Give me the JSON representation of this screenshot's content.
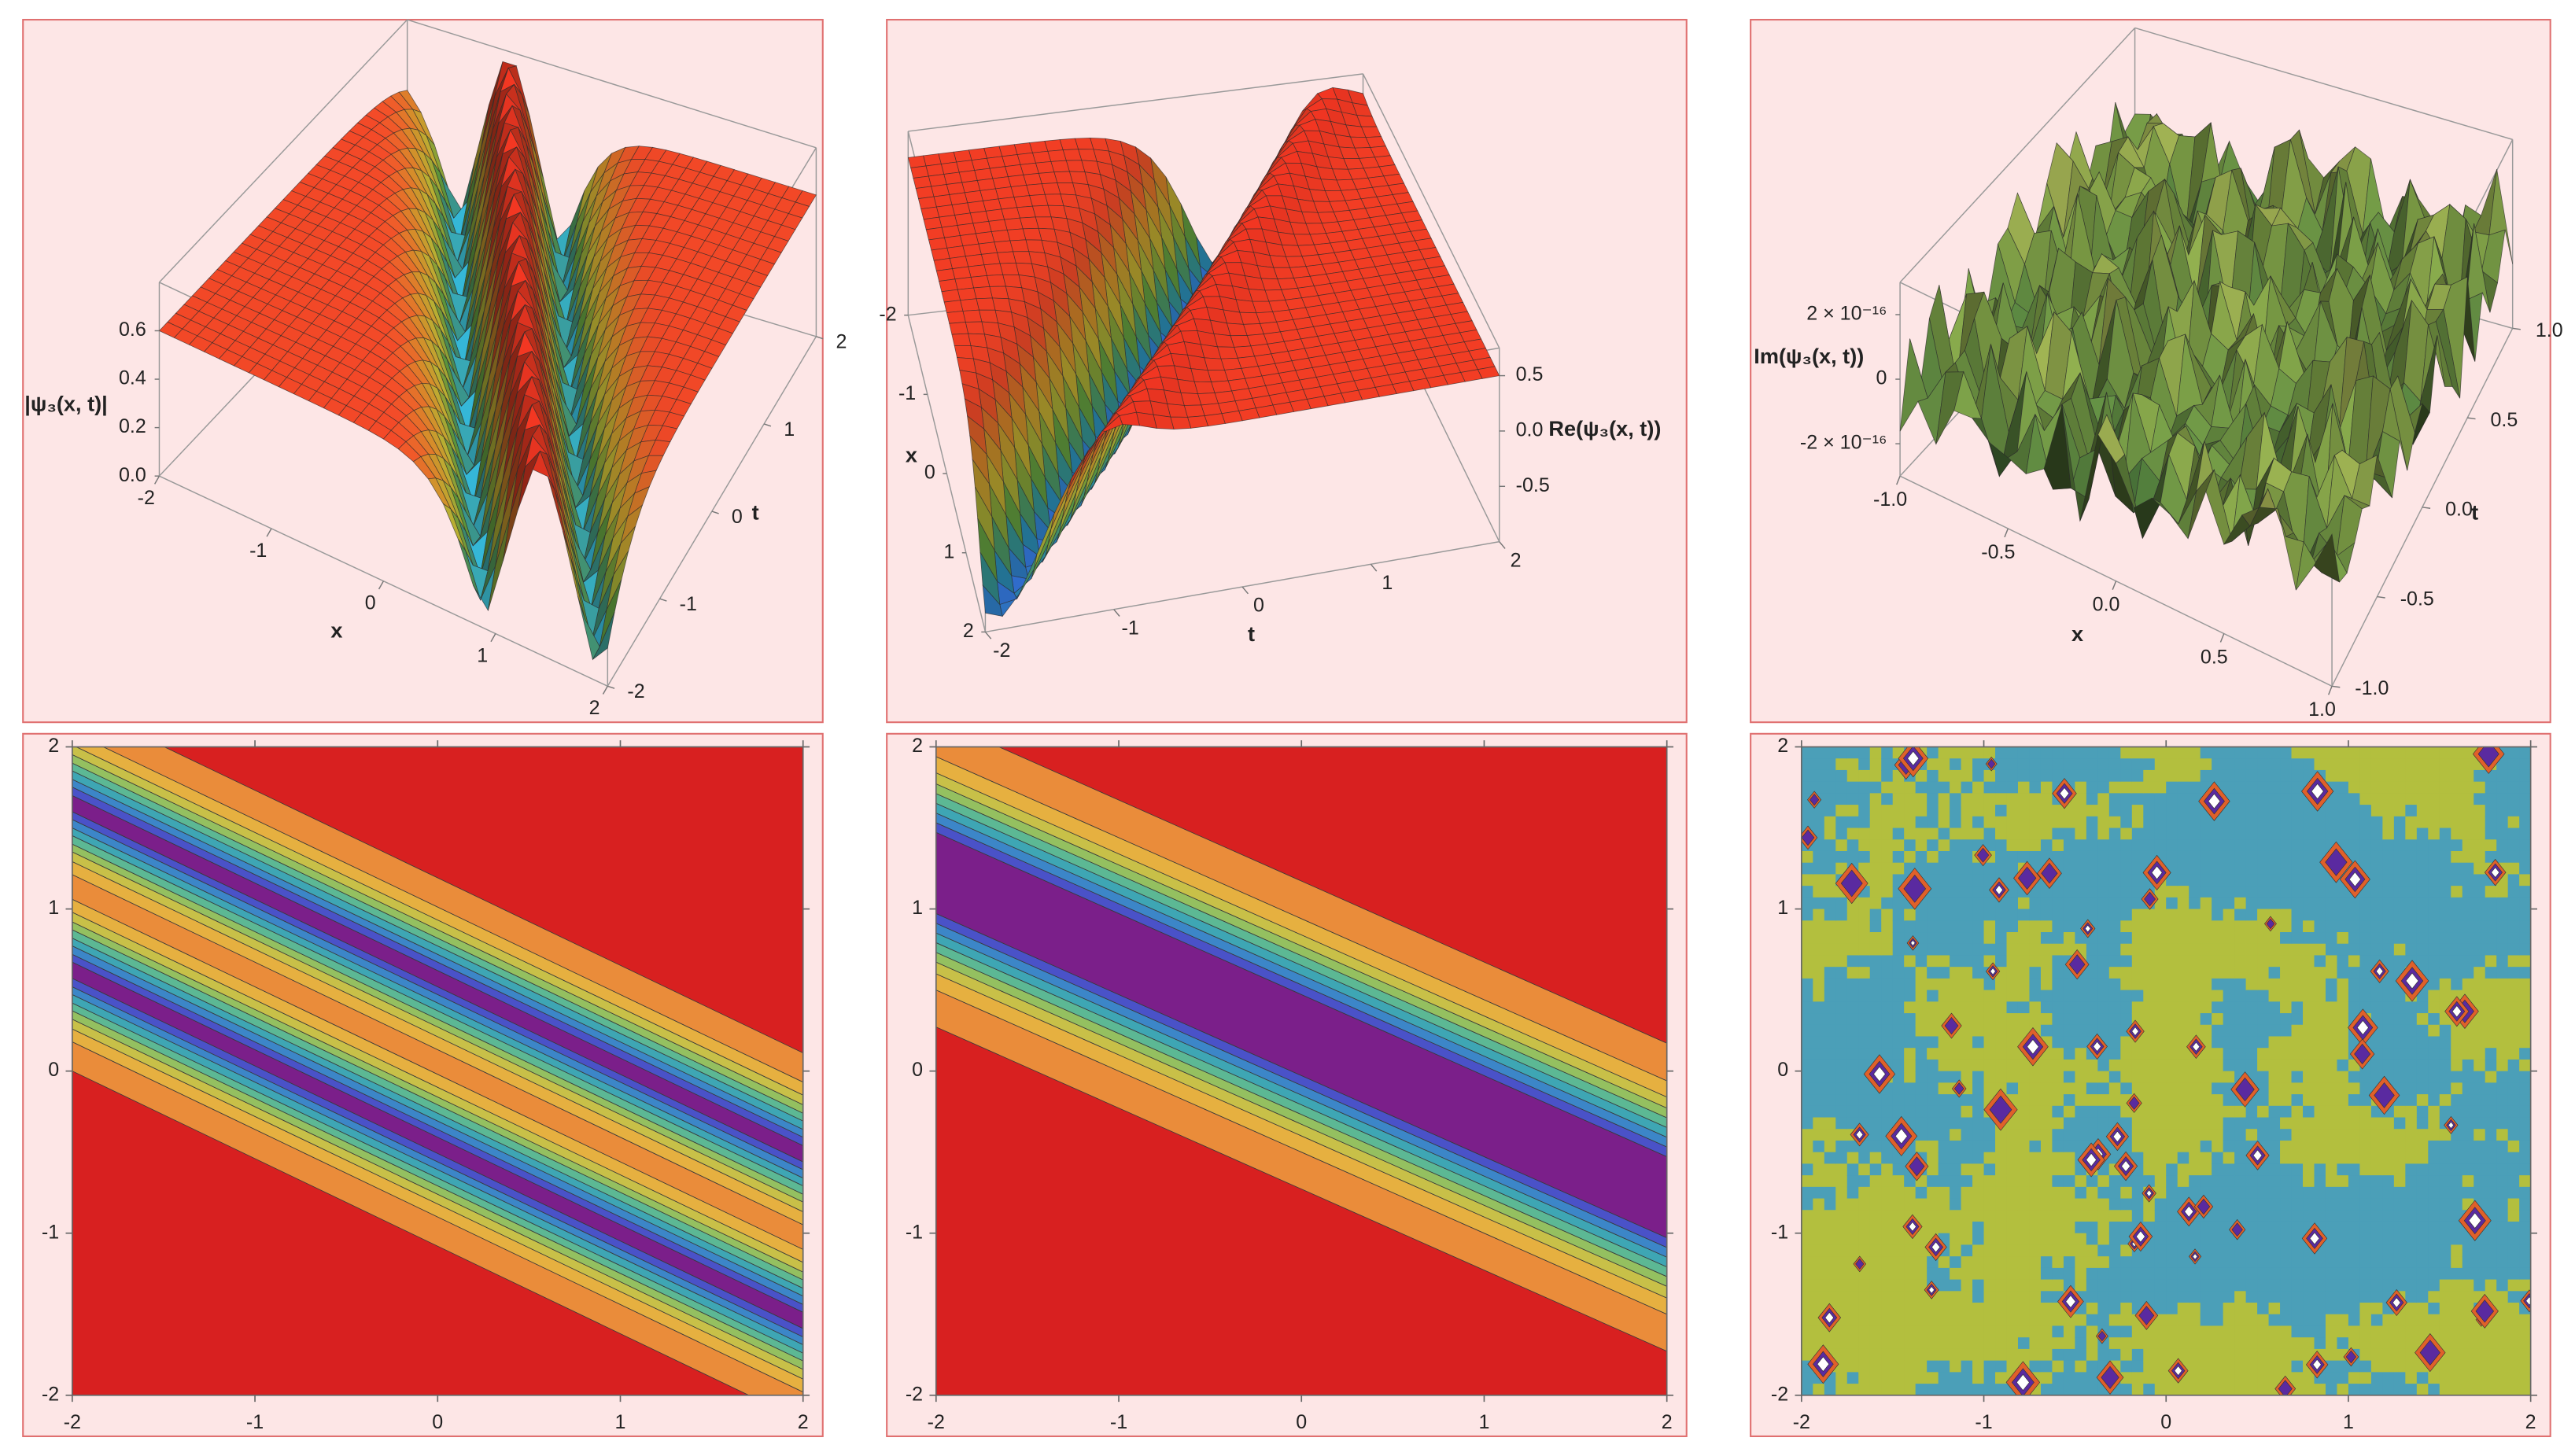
{
  "chart_data": [
    {
      "type": "surface3d",
      "z_label": "|ψ₃(x, t)|",
      "x_label": "x",
      "t_label": "t",
      "xlim": [
        -2,
        2
      ],
      "tlim": [
        -2,
        2
      ],
      "zlim": [
        0,
        0.8
      ],
      "xticks": [
        -2,
        -1,
        0,
        1,
        2
      ],
      "tticks": [
        -2,
        -1,
        0,
        1,
        2
      ],
      "zticks": [
        {
          "value": 0,
          "label": "0.0"
        },
        0.2,
        0.4,
        0.6
      ]
    },
    {
      "type": "surface3d",
      "z_label": "Re(ψ₃(x, t))",
      "x_label": "x",
      "t_label": "t",
      "xlim": [
        -2,
        2
      ],
      "tlim": [
        -2,
        2
      ],
      "zlim": [
        -1,
        0.75
      ],
      "xticks": [
        -2,
        -1,
        0,
        1,
        2
      ],
      "tticks": [
        -2,
        -1,
        0,
        1,
        2
      ],
      "zticks": [
        -0.5,
        {
          "value": 0,
          "label": "0.0"
        },
        0.5
      ]
    },
    {
      "type": "surface3d",
      "z_label": "Im(ψ₃(x, t))",
      "x_label": "x",
      "t_label": "t",
      "xlim": [
        -1,
        1
      ],
      "tlim": [
        -1,
        1
      ],
      "zlim": [
        -3e-16,
        3e-16
      ],
      "xticks": [
        {
          "value": -1,
          "label": "-1.0"
        },
        -0.5,
        {
          "value": 0,
          "label": "0.0"
        },
        0.5,
        {
          "value": 1,
          "label": "1.0"
        }
      ],
      "tticks": [
        {
          "value": -1,
          "label": "-1.0"
        },
        -0.5,
        {
          "value": 0,
          "label": "0.0"
        },
        0.5,
        {
          "value": 1,
          "label": "1.0"
        }
      ],
      "zticks": [
        {
          "value": -2e-16,
          "label": "-2 × 10⁻¹⁶"
        },
        0,
        {
          "value": 2e-16,
          "label": "2 × 10⁻¹⁶"
        }
      ]
    },
    {
      "type": "contour",
      "xlim": [
        -2,
        2
      ],
      "ylim": [
        -2,
        2
      ],
      "xticks": [
        -2,
        -1,
        0,
        1,
        2
      ],
      "yticks": [
        -2,
        -1,
        0,
        1,
        2
      ]
    },
    {
      "type": "contour",
      "xlim": [
        -2,
        2
      ],
      "ylim": [
        -2,
        2
      ],
      "xticks": [
        -2,
        -1,
        0,
        1,
        2
      ],
      "yticks": [
        -2,
        -1,
        0,
        1,
        2
      ]
    },
    {
      "type": "contour",
      "xlim": [
        -2,
        2
      ],
      "ylim": [
        -2,
        2
      ],
      "xticks": [
        -2,
        -1,
        0,
        1,
        2
      ],
      "yticks": [
        -2,
        -1,
        0,
        1,
        2
      ]
    }
  ]
}
